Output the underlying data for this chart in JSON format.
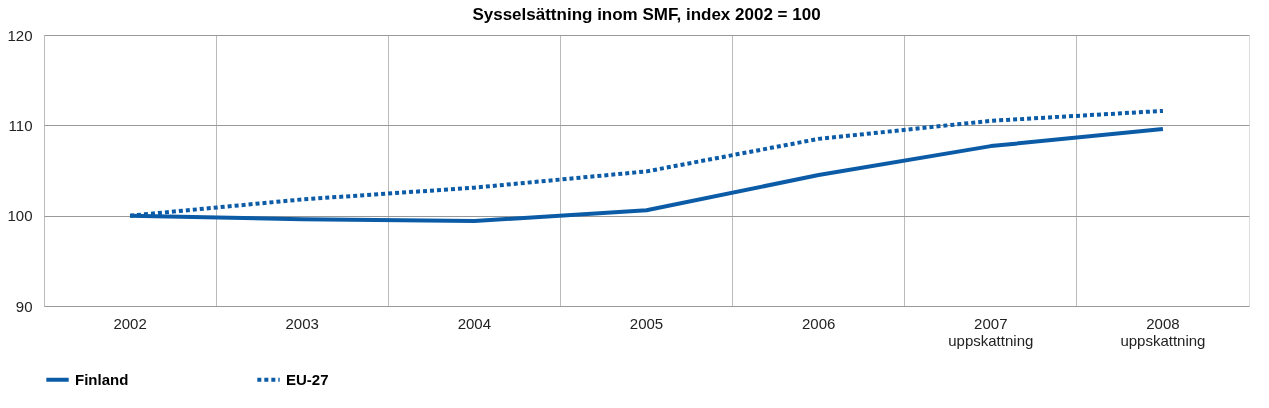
{
  "chart_data": {
    "type": "line",
    "title": "Sysselsättning inom SMF, index 2002 = 100",
    "categories": [
      "2002",
      "2003",
      "2004",
      "2005",
      "2006",
      "2007\nuppskattning",
      "2008\nuppskattning"
    ],
    "series": [
      {
        "name": "Finland",
        "color": "#0b5ba6",
        "line_style": "solid",
        "values": [
          100,
          99.6,
          99.4,
          100.6,
          104.5,
          107.7,
          109.6
        ]
      },
      {
        "name": "EU-27",
        "color": "#0b5ba6",
        "line_style": "dotted",
        "values": [
          100,
          101.8,
          103.1,
          104.9,
          108.5,
          110.5,
          111.6
        ]
      }
    ],
    "ylim": [
      90,
      120
    ],
    "yticks": [
      90,
      100,
      110,
      120
    ],
    "grid": true,
    "legend": "bottom"
  }
}
